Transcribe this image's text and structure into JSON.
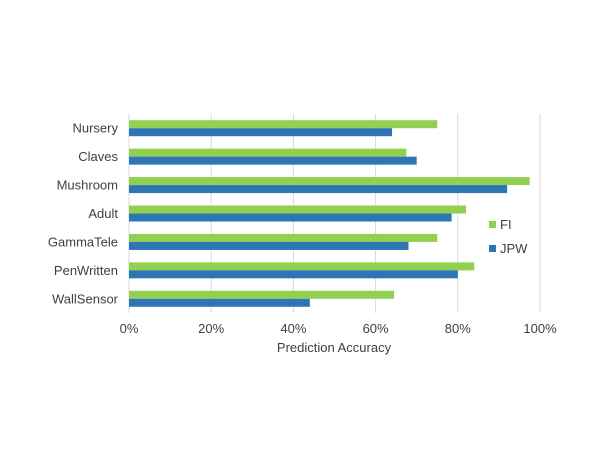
{
  "chart_data": {
    "type": "bar",
    "orientation": "horizontal",
    "categories": [
      "Nursery",
      "Claves",
      "Mushroom",
      "Adult",
      "GammaTele",
      "PenWritten",
      "WallSensor"
    ],
    "series": [
      {
        "name": "FI",
        "color": "#92d050",
        "values": [
          0.75,
          0.675,
          0.975,
          0.82,
          0.75,
          0.84,
          0.645
        ]
      },
      {
        "name": "JPW",
        "color": "#2e75b6",
        "values": [
          0.64,
          0.7,
          0.92,
          0.785,
          0.68,
          0.8,
          0.44
        ]
      }
    ],
    "xlabel": "Prediction Accuracy",
    "ylabel": "",
    "xlim": [
      0,
      1
    ],
    "x_ticks": [
      "0%",
      "20%",
      "40%",
      "60%",
      "80%",
      "100%"
    ],
    "grid": "vertical",
    "legend_position": "right",
    "gridline_color": "#d9d9d9"
  }
}
